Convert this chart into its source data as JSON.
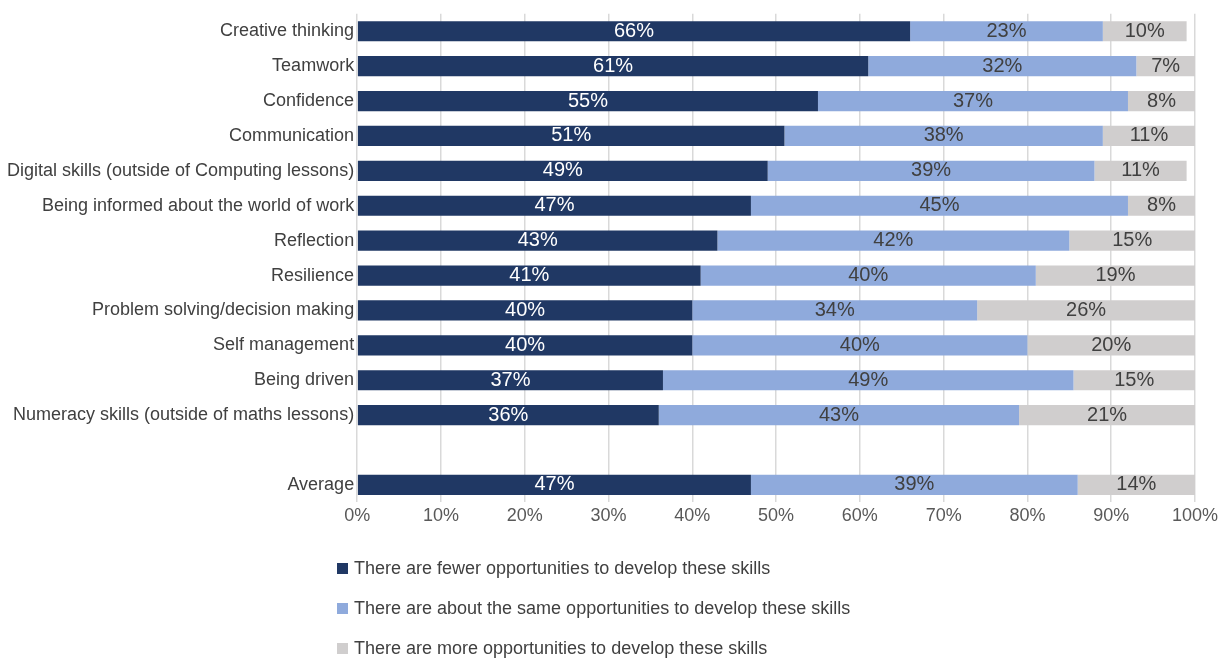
{
  "chart_data": {
    "type": "bar",
    "orientation": "horizontal",
    "stacked": true,
    "grid": "x",
    "legend": "bottom",
    "categories": [
      "Creative thinking",
      "Teamwork",
      "Confidence",
      "Communication",
      "Digital skills (outside of Computing lessons)",
      "Being informed about the world of work",
      "Reflection",
      "Resilience",
      "Problem solving/decision making",
      "Self management",
      "Being driven",
      "Numeracy skills (outside of maths lessons)",
      null,
      "Average"
    ],
    "series": [
      {
        "name": "There are fewer opportunities to develop these skills",
        "color": "#203864",
        "values": [
          66,
          61,
          55,
          51,
          49,
          47,
          43,
          41,
          40,
          40,
          36.5,
          36,
          null,
          47
        ],
        "value_labels": [
          "66%",
          "61%",
          "55%",
          "51%",
          "49%",
          "47%",
          "43%",
          "41%",
          "40%",
          "40%",
          "37%",
          "36%",
          null,
          "47%"
        ]
      },
      {
        "name": "There are about the same opportunities to develop these skills",
        "color": "#8faadc",
        "values": [
          23,
          32,
          37,
          38,
          39,
          45,
          42,
          40,
          34,
          40,
          49,
          43,
          null,
          39
        ],
        "value_labels": [
          "23%",
          "32%",
          "37%",
          "38%",
          "39%",
          "45%",
          "42%",
          "40%",
          "34%",
          "40%",
          "49%",
          "43%",
          null,
          "39%"
        ]
      },
      {
        "name": "There are more opportunities to develop these skills",
        "color": "#d0cece",
        "values": [
          10,
          7,
          8,
          11,
          11,
          8,
          15,
          19,
          26,
          20,
          14.5,
          21,
          null,
          14
        ],
        "value_labels": [
          "10%",
          "7%",
          "8%",
          "11%",
          "11%",
          "8%",
          "15%",
          "19%",
          "26%",
          "20%",
          "15%",
          "21%",
          null,
          "14%"
        ]
      }
    ],
    "xlim": [
      0,
      100
    ],
    "xticks": [
      {
        "value": 0,
        "label": "0%"
      },
      {
        "value": 10,
        "label": "10%"
      },
      {
        "value": 20,
        "label": "20%"
      },
      {
        "value": 30,
        "label": "30%"
      },
      {
        "value": 40,
        "label": "40%"
      },
      {
        "value": 50,
        "label": "50%"
      },
      {
        "value": 60,
        "label": "60%"
      },
      {
        "value": 70,
        "label": "70%"
      },
      {
        "value": 80,
        "label": "80%"
      },
      {
        "value": 90,
        "label": "90%"
      },
      {
        "value": 100,
        "label": "100%"
      }
    ]
  }
}
